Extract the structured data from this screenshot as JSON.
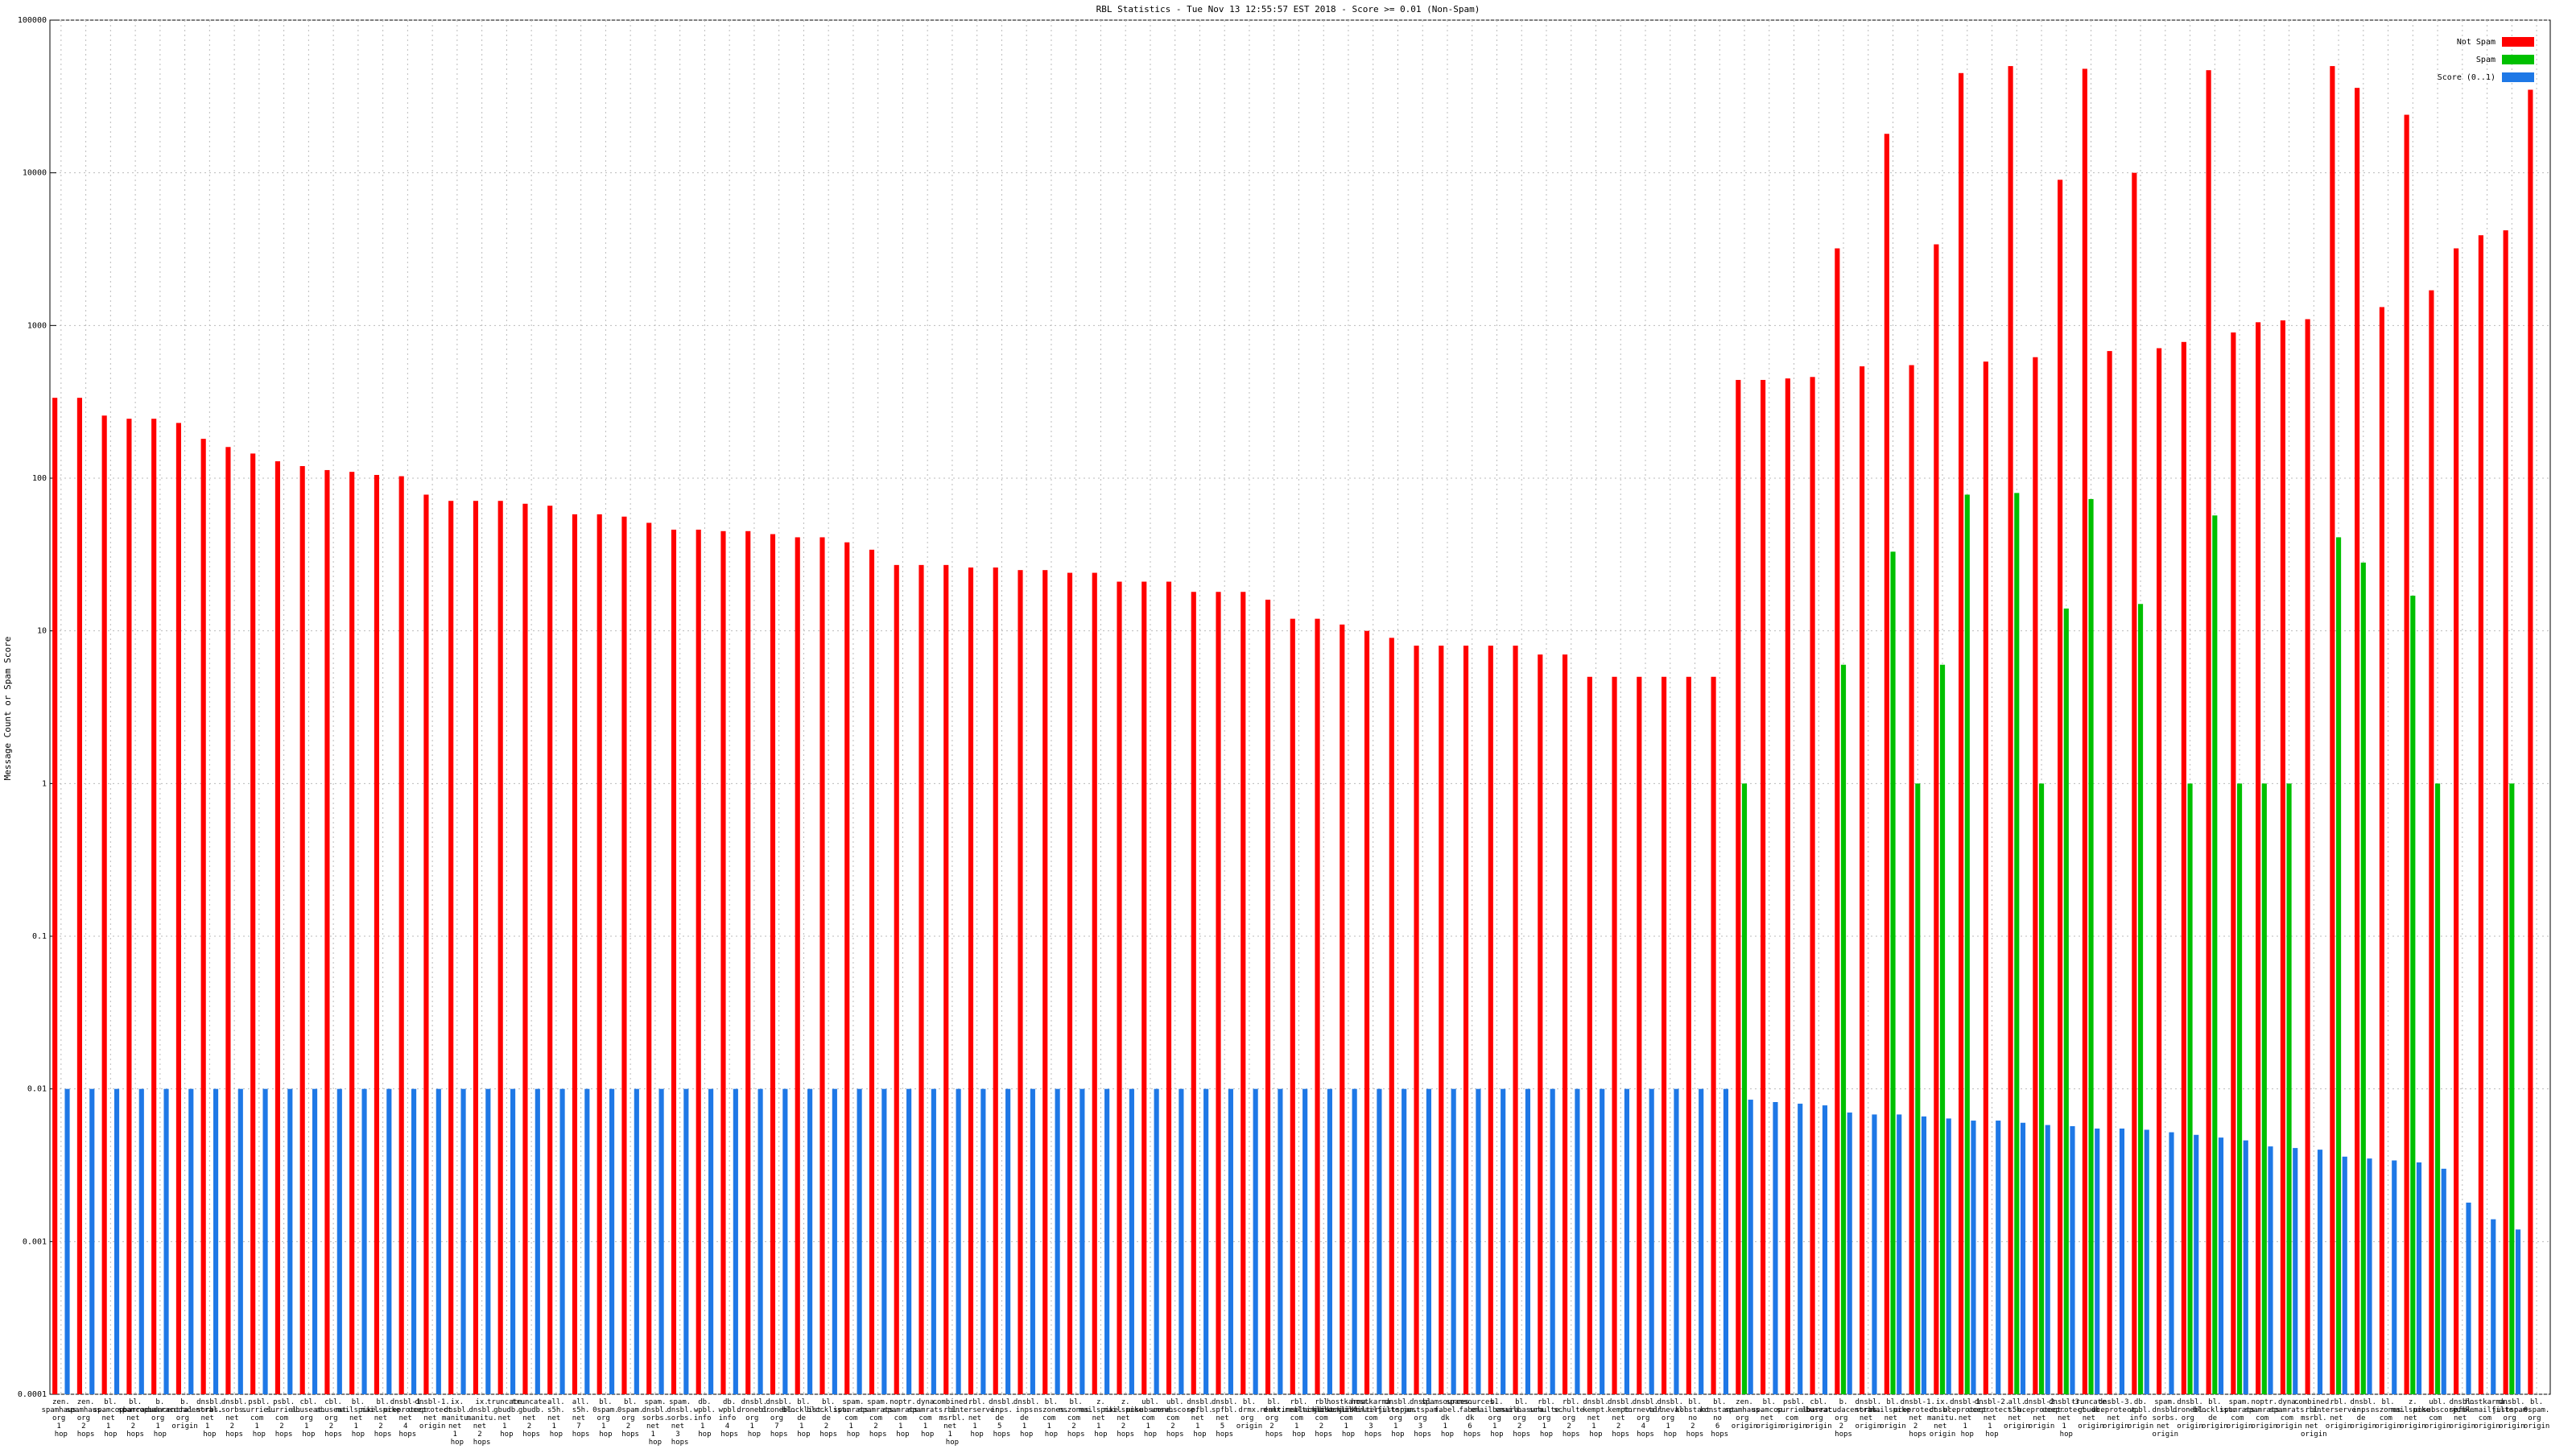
{
  "chart_data": {
    "type": "bar",
    "log_scale": true,
    "grid": true,
    "legend": "top-right",
    "title": "RBL Statistics - Tue Nov 13 12:55:57 EST 2018 - Score >= 0.01 (Non-Spam)",
    "y_label": "Message Count or Spam Score",
    "ylim": [
      0.0001,
      100000
    ],
    "yticks": [
      0.0001,
      0.001,
      0.01,
      0.1,
      1,
      10,
      100,
      1000,
      10000,
      100000
    ],
    "categories": [
      "zen.spamhaus.org 1 hop",
      "zen.spamhaus.org 2 hops",
      "bl.spamcop.net 1 hop",
      "bl.spamcop.net 2 hops",
      "b.barracudacentral.org 1 hop",
      "b.barracudacentral.org origin",
      "dnsbl.sorbs.net 1 hop",
      "dnsbl.sorbs.net 2 hops",
      "psbl.surriel.com 1 hop",
      "psbl.surriel.com 2 hops",
      "cbl.abuseat.org 1 hop",
      "cbl.abuseat.org 2 hops",
      "bl.mailspike.net 1 hop",
      "bl.mailspike.net 2 hops",
      "dnsbl-1.uceprotect.net 4 hops",
      "dnsbl-1.uceprotect.net origin",
      "ix.dnsbl.manitu.net 1 hop",
      "ix.dnsbl.manitu.net 2 hops",
      "truncate.gbudb.net 1 hop",
      "truncate.gbudb.net 2 hops",
      "all.s5h.net 1 hop",
      "all.s5h.net 7 hops",
      "bl.0spam.org 1 hop",
      "bl.0spam.org 2 hops",
      "spam.dnsbl.sorbs.net 1 hop",
      "spam.dnsbl.sorbs.net 3 hops",
      "db.wpbl.info 1 hop",
      "db.wpbl.info 4 hops",
      "dnsbl.dronebl.org 1 hop",
      "dnsbl.dronebl.org 7 hops",
      "bl.blocklist.de 1 hop",
      "bl.blocklist.de 2 hops",
      "spam.spamrats.com 1 hop",
      "spam.spamrats.com 2 hops",
      "noptr.spamrats.com 1 hop",
      "dyna.spamrats.com 1 hop",
      "combined.rbl.msrbl.net 1 hop",
      "rbl.interserver.net 1 hop",
      "dnsbl.inps.de 5 hops",
      "dnsbl.inps.de 1 hop",
      "bl.nszones.com 1 hop",
      "bl.nszones.com 2 hops",
      "z.mailspike.net 1 hop",
      "z.mailspike.net 2 hops",
      "ubl.unsubscore.com 1 hop",
      "ubl.unsubscore.com 2 hops",
      "dnsbl.spfbl.net 1 hop",
      "dnsbl.spfbl.net 5 hops",
      "bl.drmx.org origin",
      "bl.drmx.org 2 hops",
      "rbl.realtimeblacklist.com 1 hop",
      "rbl.realtimeblacklist.com 2 hops",
      "hostkarma.junkemailfilter.com 1 hop",
      "hostkarma.junkemailfilter.com 3 hops",
      "dnsbl.justspam.org 1 hop",
      "dnsbl.justspam.org 3 hops",
      "spamsources.fabel.dk 1 hop",
      "spamsources.fabel.dk 6 hops",
      "bl.emailbasura.org 1 hop",
      "bl.emailbasura.org 2 hops",
      "rbl.schulte.org 1 hop",
      "rbl.schulte.org 2 hops",
      "dnsbl.kempt.net 1 hop",
      "dnsbl.kempt.net 2 hops",
      "dnsbl.tornevall.org 4 hops",
      "dnsbl.tornevall.org 1 hop",
      "bl.konstant.no 2 hops",
      "bl.konstant.no 6 hops",
      "zen.spamhaus.org origin",
      "bl.spamcop.net origin",
      "psbl.surriel.com origin",
      "cbl.abuseat.org origin",
      "b.barracudacentral.org 2 hops",
      "dnsbl.sorbs.net origin",
      "bl.mailspike.net origin",
      "dnsbl-1.uceprotect.net 2 hops",
      "ix.dnsbl.manitu.net origin",
      "dnsbl-1.uceprotect.net 1 hop",
      "dnsbl-2.uceprotect.net 1 hop",
      "all.s5h.net origin",
      "dnsbl-2.uceprotect.net origin",
      "dnsbl-3.uceprotect.net 1 hop",
      "truncate.gbudb.net origin",
      "dnsbl-3.uceprotect.net origin",
      "db.wpbl.info origin",
      "spam.dnsbl.sorbs.net origin",
      "dnsbl.dronebl.org origin",
      "bl.blocklist.de origin",
      "spam.spamrats.com origin",
      "noptr.spamrats.com origin",
      "dyna.spamrats.com origin",
      "combined.rbl.msrbl.net origin",
      "rbl.interserver.net origin",
      "dnsbl.inps.de origin",
      "bl.nszones.com origin",
      "z.mailspike.net origin",
      "ubl.unsubscore.com origin",
      "dnsbl.spfbl.net origin",
      "hostkarma.junkemailfilter.com origin",
      "dnsbl.justspam.org origin",
      "bl.0spam.org origin"
    ],
    "series": [
      {
        "name": "Not Spam",
        "color": "#ff0000",
        "values": [
          336,
          336,
          257,
          245,
          245,
          230,
          181,
          160,
          145,
          129,
          120,
          113,
          110,
          105,
          103,
          78,
          71,
          71,
          71,
          68,
          66,
          58,
          58,
          56,
          51,
          46,
          46,
          45,
          45,
          43,
          41,
          41,
          38,
          34,
          27,
          27,
          27,
          26,
          26,
          25,
          25,
          24,
          24,
          21,
          21,
          21,
          18,
          18,
          18,
          16,
          12,
          12,
          11,
          10,
          9,
          8,
          8,
          8,
          8,
          8,
          7,
          7,
          5,
          5,
          5,
          5,
          5,
          5,
          440,
          440,
          450,
          460,
          3200,
          540,
          18000,
          550,
          3400,
          45000,
          580,
          50000,
          620,
          9000,
          48000,
          680,
          10000,
          710,
          780,
          47000,
          900,
          1050,
          1080,
          1100,
          50000,
          36000,
          1320,
          24000,
          1700,
          3200,
          3900,
          4200,
          35000
        ]
      },
      {
        "name": "Spam",
        "color": "#00c000",
        "values": [
          null,
          null,
          null,
          null,
          null,
          null,
          null,
          null,
          null,
          null,
          null,
          null,
          null,
          null,
          null,
          null,
          null,
          null,
          null,
          null,
          null,
          null,
          null,
          null,
          null,
          null,
          null,
          null,
          null,
          null,
          null,
          null,
          null,
          null,
          null,
          null,
          null,
          null,
          null,
          null,
          null,
          null,
          null,
          null,
          null,
          null,
          null,
          null,
          null,
          null,
          null,
          null,
          null,
          null,
          null,
          null,
          null,
          null,
          null,
          null,
          null,
          null,
          null,
          null,
          null,
          null,
          null,
          null,
          1,
          null,
          null,
          null,
          6,
          null,
          33,
          1,
          6,
          78,
          null,
          80,
          1,
          14,
          73,
          null,
          15,
          null,
          1,
          57,
          1,
          1,
          1,
          null,
          41,
          28,
          null,
          17,
          1,
          null,
          null,
          1,
          null
        ]
      },
      {
        "name": "Score (0..1)",
        "color": "#1e78e6",
        "values": [
          0.01,
          0.01,
          0.01,
          0.01,
          0.01,
          0.01,
          0.01,
          0.01,
          0.01,
          0.01,
          0.01,
          0.01,
          0.01,
          0.01,
          0.01,
          0.01,
          0.01,
          0.01,
          0.01,
          0.01,
          0.01,
          0.01,
          0.01,
          0.01,
          0.01,
          0.01,
          0.01,
          0.01,
          0.01,
          0.01,
          0.01,
          0.01,
          0.01,
          0.01,
          0.01,
          0.01,
          0.01,
          0.01,
          0.01,
          0.01,
          0.01,
          0.01,
          0.01,
          0.01,
          0.01,
          0.01,
          0.01,
          0.01,
          0.01,
          0.01,
          0.01,
          0.01,
          0.01,
          0.01,
          0.01,
          0.01,
          0.01,
          0.01,
          0.01,
          0.01,
          0.01,
          0.01,
          0.01,
          0.01,
          0.01,
          0.01,
          0.01,
          0.01,
          0.0085,
          0.0082,
          0.008,
          0.0078,
          0.007,
          0.0068,
          0.0068,
          0.0066,
          0.0064,
          0.0062,
          0.0062,
          0.006,
          0.0058,
          0.0057,
          0.0055,
          0.0055,
          0.0054,
          0.0052,
          0.005,
          0.0048,
          0.0046,
          0.0042,
          0.0041,
          0.004,
          0.0036,
          0.0035,
          0.0034,
          0.0033,
          0.003,
          0.0018,
          0.0014,
          0.0012,
          null
        ]
      }
    ]
  }
}
